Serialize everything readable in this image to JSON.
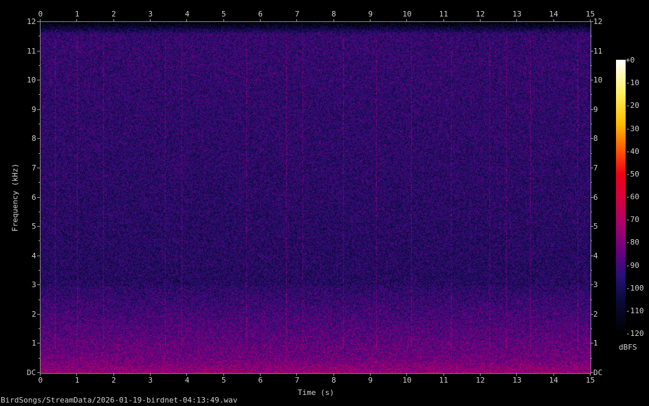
{
  "chart_data": {
    "type": "heatmap",
    "subtype": "spectrogram",
    "xlabel": "Time (s)",
    "ylabel": "Frequency (kHz)",
    "xlim": [
      0,
      15
    ],
    "ylim": [
      0,
      12
    ],
    "x_ticks": [
      "0",
      "1",
      "2",
      "3",
      "4",
      "5",
      "6",
      "7",
      "8",
      "9",
      "10",
      "11",
      "12",
      "13",
      "14",
      "15"
    ],
    "y_ticks": [
      "DC",
      "1",
      "2",
      "3",
      "4",
      "5",
      "6",
      "7",
      "8",
      "9",
      "10",
      "11",
      "12"
    ],
    "colorbar": {
      "label": "dBFS",
      "range": [
        -120,
        0
      ],
      "ticks": [
        "+0",
        "-10",
        "-20",
        "-30",
        "-40",
        "-50",
        "-60",
        "-70",
        "-80",
        "-90",
        "-100",
        "-110",
        "-120"
      ],
      "colors": [
        "#000000",
        "#0a0a40",
        "#3a1080",
        "#800080",
        "#c00060",
        "#f00020",
        "#ff6000",
        "#ffc000",
        "#ffff80",
        "#ffffff"
      ]
    },
    "background_level_dbfs": {
      "low_freq": -75,
      "mid_freq": -98,
      "high_freq": -102
    },
    "cutoff_khz": 11.6,
    "transient_events_s": [
      0.4,
      1.0,
      1.7,
      3.4,
      3.85,
      5.6,
      6.7,
      7.15,
      8.25,
      9.15,
      10.1,
      11.2,
      12.25,
      12.7,
      13.35,
      14.65
    ]
  },
  "footer": {
    "filename": "BirdSongs/StreamData/2026-01-19-birdnet-04:13:49.wav"
  }
}
